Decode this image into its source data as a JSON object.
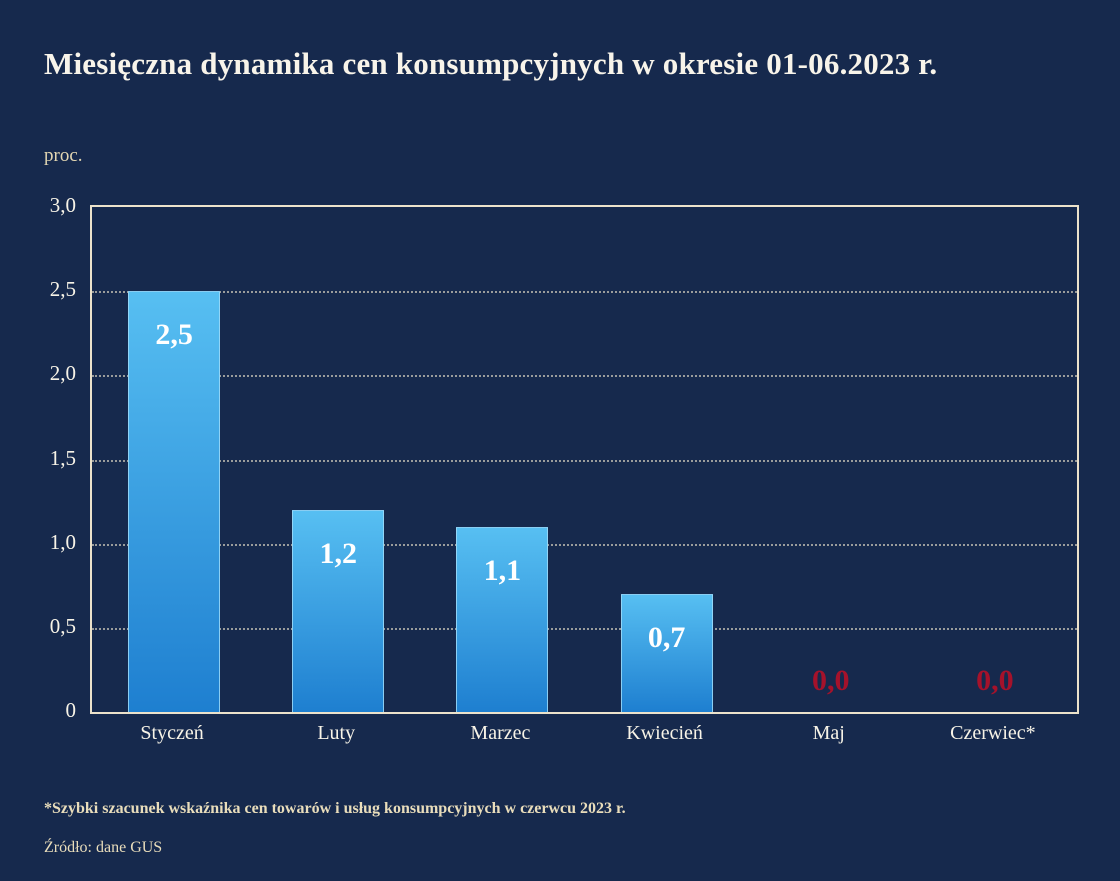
{
  "page": {
    "background": "#16294d"
  },
  "chart_data": {
    "type": "bar",
    "title": "Miesięczna dynamika cen konsumpcyjnych w okresie 01-06.2023 r.",
    "ylabel": "proc.",
    "xlabel": "",
    "categories": [
      "Styczeń",
      "Luty",
      "Marzec",
      "Kwiecień",
      "Maj",
      "Czerwiec*"
    ],
    "values": [
      2.5,
      1.2,
      1.1,
      0.7,
      0.0,
      0.0
    ],
    "value_labels": [
      "2,5",
      "1,2",
      "1,1",
      "0,7",
      "0,0",
      "0,0"
    ],
    "ylim": [
      0,
      3
    ],
    "ytick_values": [
      0,
      0.5,
      1.0,
      1.5,
      2.0,
      2.5,
      3.0
    ],
    "ytick_labels": [
      "0",
      "0,5",
      "1,0",
      "1,5",
      "2,0",
      "2,5",
      "3,0"
    ],
    "grid": "dotted-horizontal",
    "legend": "none",
    "bar_color_top": "#57bff2",
    "bar_color_bottom": "#1e7fd0",
    "value_label_color": "#ffffff",
    "zero_label_color": "#a5122b"
  },
  "notes": {
    "footnote": "*Szybki szacunek wskaźnika cen towarów i usług konsumpcyjnych w czerwcu 2023 r.",
    "source": "Źródło: dane GUS"
  }
}
